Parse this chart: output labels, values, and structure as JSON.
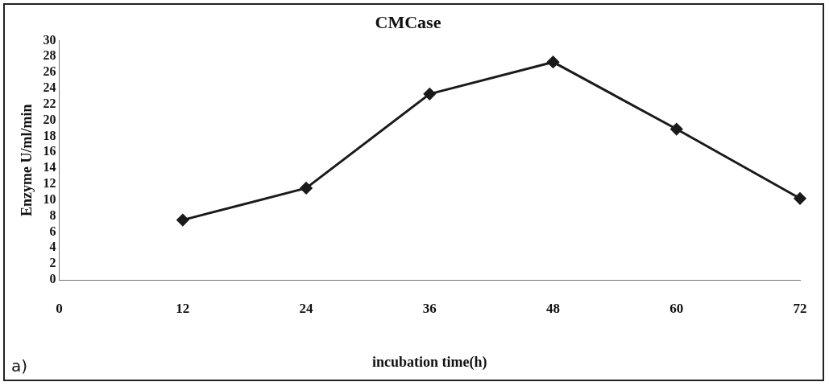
{
  "chart_data": {
    "type": "line",
    "title": "CMCase",
    "xlabel": "incubation time(h)",
    "ylabel": "Enzyme U/ml/min",
    "annotations": [
      "a)"
    ],
    "x": [
      12,
      24,
      36,
      48,
      60,
      72
    ],
    "series": [
      {
        "color": "#1a1a1a",
        "values": [
          7.5,
          11.5,
          23.3,
          27.3,
          18.9,
          10.2
        ]
      }
    ],
    "xlim": [
      0,
      72
    ],
    "xticks": [
      0,
      12,
      24,
      36,
      48,
      60,
      72
    ],
    "ylim": [
      0,
      30
    ],
    "yticks": [
      0,
      2,
      4,
      6,
      8,
      10,
      12,
      14,
      16,
      18,
      20,
      22,
      24,
      26,
      28,
      30
    ],
    "grid": false,
    "legend": false,
    "marker": "diamond",
    "line_style": "solid"
  }
}
